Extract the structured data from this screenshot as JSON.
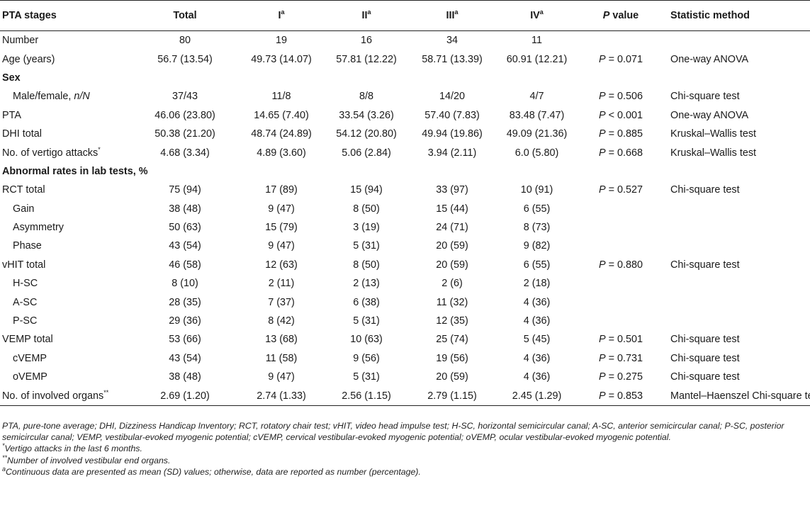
{
  "header": {
    "stages": "PTA stages",
    "total": "Total",
    "I": "I",
    "II": "II",
    "III": "III",
    "IV": "IV",
    "sup_a": "a",
    "p_value_italic": "P",
    "p_value_rest": " value",
    "method": "Statistic method"
  },
  "rows": {
    "number": {
      "label": "Number",
      "total": "80",
      "I": "19",
      "II": "16",
      "III": "34",
      "IV": "11",
      "p": "",
      "method": ""
    },
    "age": {
      "label": "Age (years)",
      "total": "56.7 (13.54)",
      "I": "49.73 (14.07)",
      "II": "57.81 (12.22)",
      "III": "58.71 (13.39)",
      "IV": "60.91 (12.21)",
      "p": "= 0.071",
      "method": "One-way ANOVA"
    },
    "sex": {
      "label": "Sex"
    },
    "male_female": {
      "label_main": "Male/female, ",
      "label_italic": "n/N",
      "total": "37/43",
      "I": "11/8",
      "II": "8/8",
      "III": "14/20",
      "IV": "4/7",
      "p": "= 0.506",
      "method": "Chi-square test"
    },
    "pta": {
      "label": "PTA",
      "total": "46.06 (23.80)",
      "I": "14.65 (7.40)",
      "II": "33.54 (3.26)",
      "III": "57.40 (7.83)",
      "IV": "83.48 (7.47)",
      "p": "< 0.001",
      "method": "One-way ANOVA"
    },
    "dhi": {
      "label": "DHI total",
      "total": "50.38 (21.20)",
      "I": "48.74 (24.89)",
      "II": "54.12 (20.80)",
      "III": "49.94 (19.86)",
      "IV": "49.09 (21.36)",
      "p": "= 0.885",
      "method": "Kruskal–Wallis test"
    },
    "vertigo": {
      "label": "No. of vertigo attacks",
      "sup": "*",
      "total": "4.68 (3.34)",
      "I": "4.89 (3.60)",
      "II": "5.06 (2.84)",
      "III": "3.94 (2.11)",
      "IV": "6.0 (5.80)",
      "p": "= 0.668",
      "method": "Kruskal–Wallis test"
    },
    "abnormal": {
      "label": "Abnormal rates in lab tests, %"
    },
    "rct": {
      "label": "RCT total",
      "total": "75 (94)",
      "I": "17 (89)",
      "II": "15 (94)",
      "III": "33 (97)",
      "IV": "10 (91)",
      "p": "= 0.527",
      "method": "Chi-square test"
    },
    "gain": {
      "label": "Gain",
      "total": "38 (48)",
      "I": "9 (47)",
      "II": "8 (50)",
      "III": "15 (44)",
      "IV": "6 (55)",
      "p": "",
      "method": ""
    },
    "asym": {
      "label": "Asymmetry",
      "total": "50 (63)",
      "I": "15 (79)",
      "II": "3 (19)",
      "III": "24 (71)",
      "IV": "8 (73)",
      "p": "",
      "method": ""
    },
    "phase": {
      "label": "Phase",
      "total": "43 (54)",
      "I": "9 (47)",
      "II": "5 (31)",
      "III": "20 (59)",
      "IV": "9 (82)",
      "p": "",
      "method": ""
    },
    "vhit": {
      "label": "vHIT total",
      "total": "46 (58)",
      "I": "12 (63)",
      "II": "8 (50)",
      "III": "20 (59)",
      "IV": "6 (55)",
      "p": "= 0.880",
      "method": "Chi-square test"
    },
    "hsc": {
      "label": "H-SC",
      "total": "8 (10)",
      "I": "2 (11)",
      "II": "2 (13)",
      "III": "2 (6)",
      "IV": "2 (18)",
      "p": "",
      "method": ""
    },
    "asc": {
      "label": "A-SC",
      "total": "28 (35)",
      "I": "7 (37)",
      "II": "6 (38)",
      "III": "11 (32)",
      "IV": "4 (36)",
      "p": "",
      "method": ""
    },
    "psc": {
      "label": "P-SC",
      "total": "29 (36)",
      "I": "8 (42)",
      "II": "5 (31)",
      "III": "12 (35)",
      "IV": "4 (36)",
      "p": "",
      "method": ""
    },
    "vemp": {
      "label": "VEMP total",
      "total": "53 (66)",
      "I": "13 (68)",
      "II": "10 (63)",
      "III": "25 (74)",
      "IV": "5 (45)",
      "p": "= 0.501",
      "method": "Chi-square test"
    },
    "cvemp": {
      "label": "cVEMP",
      "total": "43 (54)",
      "I": "11 (58)",
      "II": "9 (56)",
      "III": "19 (56)",
      "IV": "4 (36)",
      "p": "= 0.731",
      "method": "Chi-square test"
    },
    "ovemp": {
      "label": "oVEMP",
      "total": "38 (48)",
      "I": "9 (47)",
      "II": "5 (31)",
      "III": "20 (59)",
      "IV": "4 (36)",
      "p": "= 0.275",
      "method": "Chi-square test"
    },
    "organs": {
      "label": "No. of involved organs",
      "sup": "**",
      "total": "2.69 (1.20)",
      "I": "2.74 (1.33)",
      "II": "2.56 (1.15)",
      "III": "2.79 (1.15)",
      "IV": "2.45 (1.29)",
      "p": "= 0.853",
      "method": "Mantel–Haenszel Chi-square test"
    }
  },
  "p_prefix": "P",
  "footnotes": {
    "abbrev": "PTA, pure-tone average; DHI, Dizziness Handicap Inventory; RCT, rotatory chair test; vHIT, video head impulse test; H-SC, horizontal semicircular canal; A-SC, anterior semicircular canal; P-SC, posterior semicircular canal; VEMP, vestibular-evoked myogenic potential; cVEMP, cervical vestibular-evoked myogenic potential; oVEMP, ocular vestibular-evoked myogenic potential.",
    "star_mark": "*",
    "star": "Vertigo attacks in the last 6 months.",
    "dstar_mark": "**",
    "dstar": "Number of involved vestibular end organs.",
    "a_mark": "a",
    "a": "Continuous data are presented as mean (SD) values; otherwise, data are reported as number (percentage)."
  }
}
